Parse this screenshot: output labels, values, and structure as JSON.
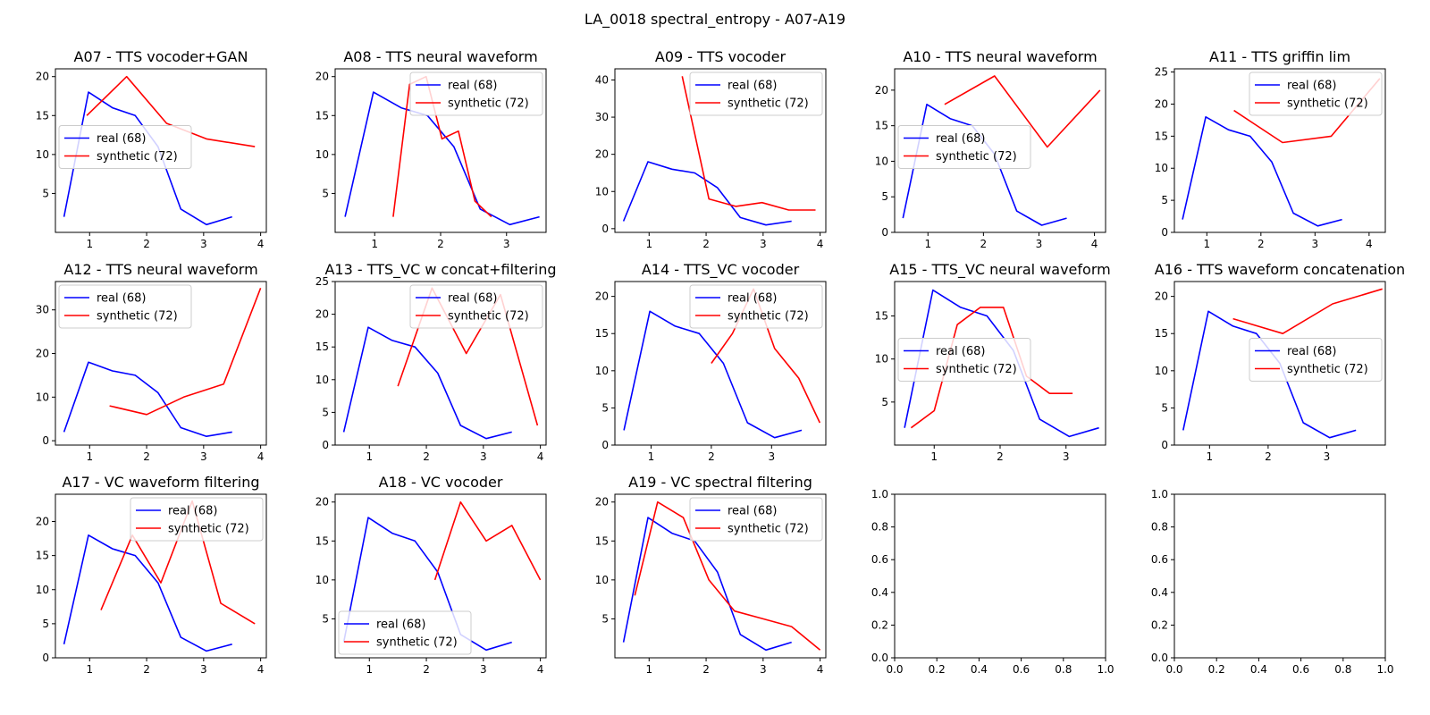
{
  "figure_title": "LA_0018 spectral_entropy - A07-A19",
  "colors": {
    "real": "#0000ff",
    "synthetic": "#ff0000"
  },
  "chart_data": [
    {
      "type": "line",
      "title": "A07 - TTS vocoder+GAN",
      "xlim": [
        0.4,
        4.1
      ],
      "ylim": [
        0,
        21
      ],
      "xticks": [
        1,
        2,
        3,
        4
      ],
      "yticks": [
        5,
        10,
        15,
        20
      ],
      "legend": "center-left",
      "series": [
        {
          "name": "real (68)",
          "color": "#0000ff",
          "x": [
            0.55,
            0.98,
            1.4,
            1.8,
            2.2,
            2.6,
            3.05,
            3.5
          ],
          "y": [
            2,
            18,
            16,
            15,
            11,
            3,
            1,
            2
          ]
        },
        {
          "name": "synthetic (72)",
          "color": "#ff0000",
          "x": [
            0.95,
            1.65,
            2.35,
            3.05,
            3.9
          ],
          "y": [
            15,
            20,
            14,
            12,
            11
          ]
        }
      ]
    },
    {
      "type": "line",
      "title": "A08 - TTS neural waveform",
      "xlim": [
        0.4,
        3.6
      ],
      "ylim": [
        0,
        21
      ],
      "xticks": [
        1,
        2,
        3
      ],
      "yticks": [
        5,
        10,
        15,
        20
      ],
      "legend": "top-right",
      "series": [
        {
          "name": "real (68)",
          "color": "#0000ff",
          "x": [
            0.55,
            0.98,
            1.4,
            1.8,
            2.2,
            2.6,
            3.05,
            3.5
          ],
          "y": [
            2,
            18,
            16,
            15,
            11,
            3,
            1,
            2
          ]
        },
        {
          "name": "synthetic (72)",
          "color": "#ff0000",
          "x": [
            1.28,
            1.53,
            1.78,
            2.02,
            2.27,
            2.52,
            2.77
          ],
          "y": [
            2,
            19,
            20,
            12,
            13,
            4,
            2
          ]
        }
      ]
    },
    {
      "type": "line",
      "title": "A09 - TTS vocoder",
      "xlim": [
        0.4,
        4.1
      ],
      "ylim": [
        -1,
        43
      ],
      "xticks": [
        1,
        2,
        3,
        4
      ],
      "yticks": [
        0,
        10,
        20,
        30,
        40
      ],
      "legend": "top-right",
      "series": [
        {
          "name": "real (68)",
          "color": "#0000ff",
          "x": [
            0.55,
            0.98,
            1.4,
            1.8,
            2.2,
            2.6,
            3.05,
            3.5
          ],
          "y": [
            2,
            18,
            16,
            15,
            11,
            3,
            1,
            2
          ]
        },
        {
          "name": "synthetic (72)",
          "color": "#ff0000",
          "x": [
            1.58,
            2.05,
            2.52,
            2.98,
            3.45,
            3.92
          ],
          "y": [
            41,
            8,
            6,
            7,
            5,
            5
          ]
        }
      ]
    },
    {
      "type": "line",
      "title": "A10 - TTS neural waveform",
      "xlim": [
        0.4,
        4.2
      ],
      "ylim": [
        0,
        23
      ],
      "xticks": [
        1,
        2,
        3,
        4
      ],
      "yticks": [
        0,
        5,
        10,
        15,
        20
      ],
      "legend": "center-left",
      "series": [
        {
          "name": "real (68)",
          "color": "#0000ff",
          "x": [
            0.55,
            0.98,
            1.4,
            1.8,
            2.2,
            2.6,
            3.05,
            3.5
          ],
          "y": [
            2,
            18,
            16,
            15,
            11,
            3,
            1,
            2
          ]
        },
        {
          "name": "synthetic (72)",
          "color": "#ff0000",
          "x": [
            1.3,
            2.2,
            3.15,
            4.1
          ],
          "y": [
            18,
            22,
            12,
            20
          ]
        }
      ]
    },
    {
      "type": "line",
      "title": "A11 - TTS griffin lim",
      "xlim": [
        0.4,
        4.3
      ],
      "ylim": [
        0,
        25.5
      ],
      "xticks": [
        1,
        2,
        3,
        4
      ],
      "yticks": [
        0,
        5,
        10,
        15,
        20,
        25
      ],
      "legend": "top-right",
      "series": [
        {
          "name": "real (68)",
          "color": "#0000ff",
          "x": [
            0.55,
            0.98,
            1.4,
            1.8,
            2.2,
            2.6,
            3.05,
            3.5
          ],
          "y": [
            2,
            18,
            16,
            15,
            11,
            3,
            1,
            2
          ]
        },
        {
          "name": "synthetic (72)",
          "color": "#ff0000",
          "x": [
            1.5,
            2.4,
            3.3,
            4.2
          ],
          "y": [
            19,
            14,
            15,
            24
          ]
        }
      ]
    },
    {
      "type": "line",
      "title": "A12 - TTS neural waveform",
      "xlim": [
        0.4,
        4.1
      ],
      "ylim": [
        -1,
        36.5
      ],
      "xticks": [
        1,
        2,
        3,
        4
      ],
      "yticks": [
        0,
        10,
        20,
        30
      ],
      "legend": "top-left",
      "series": [
        {
          "name": "real (68)",
          "color": "#0000ff",
          "x": [
            0.55,
            0.98,
            1.4,
            1.8,
            2.2,
            2.6,
            3.05,
            3.5
          ],
          "y": [
            2,
            18,
            16,
            15,
            11,
            3,
            1,
            2
          ]
        },
        {
          "name": "synthetic (72)",
          "color": "#ff0000",
          "x": [
            1.35,
            2.0,
            2.65,
            3.35,
            4.0
          ],
          "y": [
            8,
            6,
            10,
            13,
            35
          ]
        }
      ]
    },
    {
      "type": "line",
      "title": "A13 - TTS_VC w concat+filtering",
      "xlim": [
        0.4,
        4.1
      ],
      "ylim": [
        0,
        25
      ],
      "xticks": [
        1,
        2,
        3,
        4
      ],
      "yticks": [
        0,
        5,
        10,
        15,
        20,
        25
      ],
      "legend": "top-right",
      "series": [
        {
          "name": "real (68)",
          "color": "#0000ff",
          "x": [
            0.55,
            0.98,
            1.4,
            1.8,
            2.2,
            2.6,
            3.05,
            3.5
          ],
          "y": [
            2,
            18,
            16,
            15,
            11,
            3,
            1,
            2
          ]
        },
        {
          "name": "synthetic (72)",
          "color": "#ff0000",
          "x": [
            1.5,
            2.1,
            2.7,
            3.3,
            3.95
          ],
          "y": [
            9,
            24,
            14,
            23,
            3
          ]
        }
      ]
    },
    {
      "type": "line",
      "title": "A14 - TTS_VC vocoder",
      "xlim": [
        0.4,
        3.9
      ],
      "ylim": [
        0,
        22
      ],
      "xticks": [
        1,
        2,
        3
      ],
      "yticks": [
        0,
        5,
        10,
        15,
        20
      ],
      "legend": "top-right",
      "series": [
        {
          "name": "real (68)",
          "color": "#0000ff",
          "x": [
            0.55,
            0.98,
            1.4,
            1.8,
            2.2,
            2.6,
            3.05,
            3.5
          ],
          "y": [
            2,
            18,
            16,
            15,
            11,
            3,
            1,
            2
          ]
        },
        {
          "name": "synthetic (72)",
          "color": "#ff0000",
          "x": [
            2.0,
            2.35,
            2.7,
            3.05,
            3.45,
            3.8
          ],
          "y": [
            11,
            15,
            21,
            13,
            9,
            3
          ]
        }
      ]
    },
    {
      "type": "line",
      "title": "A15 - TTS_VC neural waveform",
      "xlim": [
        0.4,
        3.6
      ],
      "ylim": [
        0,
        19
      ],
      "xticks": [
        1,
        2,
        3
      ],
      "yticks": [
        5,
        10,
        15
      ],
      "legend": "center-left",
      "series": [
        {
          "name": "real (68)",
          "color": "#0000ff",
          "x": [
            0.55,
            0.98,
            1.4,
            1.8,
            2.2,
            2.6,
            3.05,
            3.5
          ],
          "y": [
            2,
            18,
            16,
            15,
            11,
            3,
            1,
            2
          ]
        },
        {
          "name": "synthetic (72)",
          "color": "#ff0000",
          "x": [
            0.65,
            1.0,
            1.35,
            1.7,
            2.05,
            2.4,
            2.75,
            3.1
          ],
          "y": [
            2,
            4,
            14,
            16,
            16,
            8,
            6,
            6
          ]
        }
      ]
    },
    {
      "type": "line",
      "title": "A16 - TTS waveform concatenation",
      "xlim": [
        0.4,
        4.0
      ],
      "ylim": [
        0,
        22
      ],
      "xticks": [
        1,
        2,
        3
      ],
      "yticks": [
        0,
        5,
        10,
        15,
        20
      ],
      "legend": "center-right",
      "series": [
        {
          "name": "real (68)",
          "color": "#0000ff",
          "x": [
            0.55,
            0.98,
            1.4,
            1.8,
            2.2,
            2.6,
            3.05,
            3.5
          ],
          "y": [
            2,
            18,
            16,
            15,
            11,
            3,
            1,
            2
          ]
        },
        {
          "name": "synthetic (72)",
          "color": "#ff0000",
          "x": [
            1.4,
            2.25,
            3.1,
            3.95
          ],
          "y": [
            17,
            15,
            19,
            21
          ]
        }
      ]
    },
    {
      "type": "line",
      "title": "A17 - VC waveform filtering",
      "xlim": [
        0.4,
        4.1
      ],
      "ylim": [
        0,
        24
      ],
      "xticks": [
        1,
        2,
        3,
        4
      ],
      "yticks": [
        0,
        5,
        10,
        15,
        20
      ],
      "legend": "top-right",
      "series": [
        {
          "name": "real (68)",
          "color": "#0000ff",
          "x": [
            0.55,
            0.98,
            1.4,
            1.8,
            2.2,
            2.6,
            3.05,
            3.5
          ],
          "y": [
            2,
            18,
            16,
            15,
            11,
            3,
            1,
            2
          ]
        },
        {
          "name": "synthetic (72)",
          "color": "#ff0000",
          "x": [
            1.2,
            1.75,
            2.25,
            2.8,
            3.3,
            3.9
          ],
          "y": [
            7,
            18,
            11,
            23,
            8,
            5
          ]
        }
      ]
    },
    {
      "type": "line",
      "title": "A18 - VC vocoder",
      "xlim": [
        0.4,
        4.1
      ],
      "ylim": [
        0,
        21
      ],
      "xticks": [
        1,
        2,
        3,
        4
      ],
      "yticks": [
        5,
        10,
        15,
        20
      ],
      "legend": "bottom-left",
      "series": [
        {
          "name": "real (68)",
          "color": "#0000ff",
          "x": [
            0.55,
            0.98,
            1.4,
            1.8,
            2.2,
            2.6,
            3.05,
            3.5
          ],
          "y": [
            2,
            18,
            16,
            15,
            11,
            3,
            1,
            2
          ]
        },
        {
          "name": "synthetic (72)",
          "color": "#ff0000",
          "x": [
            2.15,
            2.6,
            3.05,
            3.5,
            4.0
          ],
          "y": [
            10,
            20,
            15,
            17,
            10
          ]
        }
      ]
    },
    {
      "type": "line",
      "title": "A19 - VC spectral filtering",
      "xlim": [
        0.4,
        4.1
      ],
      "ylim": [
        0,
        21
      ],
      "xticks": [
        1,
        2,
        3,
        4
      ],
      "yticks": [
        5,
        10,
        15,
        20
      ],
      "legend": "top-right",
      "series": [
        {
          "name": "real (68)",
          "color": "#0000ff",
          "x": [
            0.55,
            0.98,
            1.4,
            1.8,
            2.2,
            2.6,
            3.05,
            3.5
          ],
          "y": [
            2,
            18,
            16,
            15,
            11,
            3,
            1,
            2
          ]
        },
        {
          "name": "synthetic (72)",
          "color": "#ff0000",
          "x": [
            0.75,
            1.15,
            1.6,
            2.05,
            2.5,
            3.0,
            3.5,
            4.0
          ],
          "y": [
            8,
            20,
            18,
            10,
            6,
            5,
            4,
            1
          ]
        }
      ]
    },
    {
      "type": "line",
      "title": "",
      "xlim": [
        0,
        1
      ],
      "ylim": [
        0,
        1
      ],
      "xticks": [
        0.0,
        0.2,
        0.4,
        0.6,
        0.8,
        1.0
      ],
      "yticks": [
        0.0,
        0.2,
        0.4,
        0.6,
        0.8,
        1.0
      ],
      "tick_labels_x": [
        "0.0",
        "0.2",
        "0.4",
        "0.6",
        "0.8",
        "1.0"
      ],
      "tick_labels_y": [
        "0.0",
        "0.2",
        "0.4",
        "0.6",
        "0.8",
        "1.0"
      ],
      "series": []
    },
    {
      "type": "line",
      "title": "",
      "xlim": [
        0,
        1
      ],
      "ylim": [
        0,
        1
      ],
      "xticks": [
        0.0,
        0.2,
        0.4,
        0.6,
        0.8,
        1.0
      ],
      "yticks": [
        0.0,
        0.2,
        0.4,
        0.6,
        0.8,
        1.0
      ],
      "tick_labels_x": [
        "0.0",
        "0.2",
        "0.4",
        "0.6",
        "0.8",
        "1.0"
      ],
      "tick_labels_y": [
        "0.0",
        "0.2",
        "0.4",
        "0.6",
        "0.8",
        "1.0"
      ],
      "series": []
    }
  ]
}
